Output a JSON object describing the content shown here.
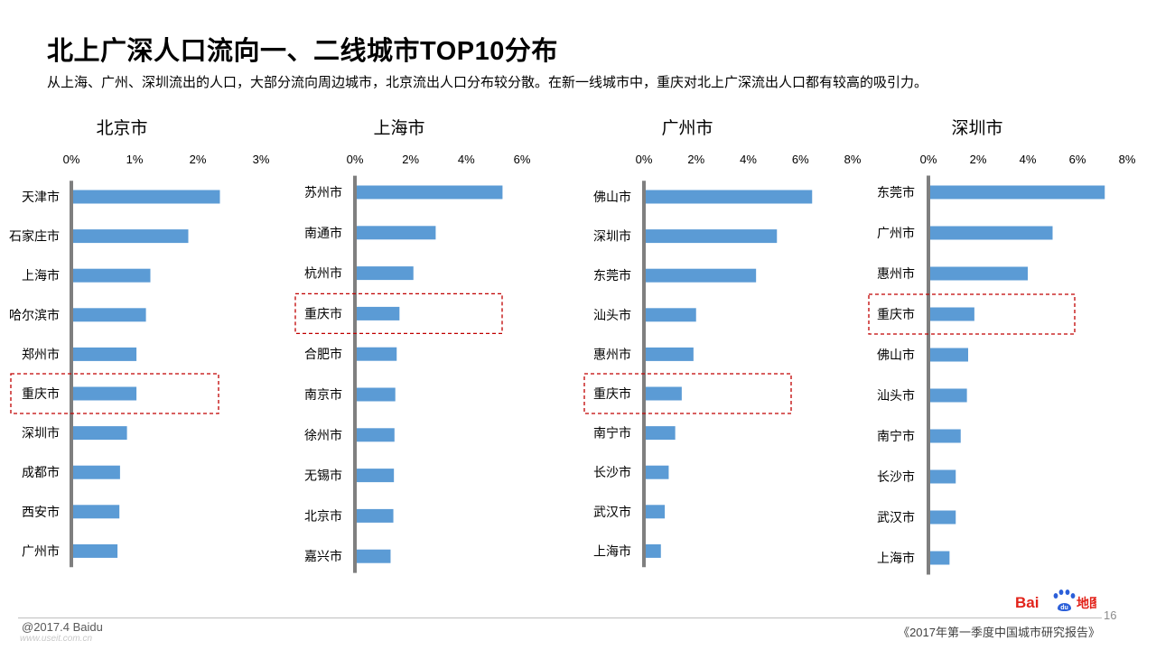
{
  "header": {
    "title": "北上广深人口流向一、二线城市TOP10分布",
    "subtitle": "从上海、广州、深圳流出的人口，大部分流向周边城市，北京流出人口分布较分散。在新一线城市中，重庆对北上广深流出人口都有较高的吸引力。"
  },
  "footer": {
    "copyright": "@2017.4 Baidu",
    "watermark": "www.useit.com.cn",
    "report_name": "《2017年第一季度中国城市研究报告》",
    "page_number": "16"
  },
  "logo": {
    "text_bai": "Bai",
    "text_map": "地图",
    "brand_red": "#e2231a",
    "brand_blue": "#2b5fd9"
  },
  "colors": {
    "bar": "#5b9bd5",
    "axis": "#7f7f7f",
    "highlight": "#c00000"
  },
  "chart_data": [
    {
      "type": "bar",
      "orientation": "horizontal",
      "title": "北京市",
      "categories": [
        "天津市",
        "石家庄市",
        "上海市",
        "哈尔滨市",
        "郑州市",
        "重庆市",
        "深圳市",
        "成都市",
        "西安市",
        "广州市"
      ],
      "values": [
        2.35,
        1.85,
        1.25,
        1.18,
        1.03,
        1.03,
        0.88,
        0.77,
        0.76,
        0.73
      ],
      "xlim": [
        0,
        3
      ],
      "ticks": [
        "0%",
        "1%",
        "2%",
        "3%"
      ],
      "unit": "%",
      "highlight": "重庆市"
    },
    {
      "type": "bar",
      "orientation": "horizontal",
      "title": "上海市",
      "categories": [
        "苏州市",
        "南通市",
        "杭州市",
        "重庆市",
        "合肥市",
        "南京市",
        "徐州市",
        "无锡市",
        "北京市",
        "嘉兴市"
      ],
      "values": [
        5.3,
        2.9,
        2.1,
        1.6,
        1.5,
        1.45,
        1.42,
        1.4,
        1.38,
        1.28
      ],
      "xlim": [
        0,
        6
      ],
      "ticks": [
        "0%",
        "2%",
        "4%",
        "6%"
      ],
      "unit": "%",
      "highlight": "重庆市"
    },
    {
      "type": "bar",
      "orientation": "horizontal",
      "title": "广州市",
      "categories": [
        "佛山市",
        "深圳市",
        "东莞市",
        "汕头市",
        "惠州市",
        "重庆市",
        "南宁市",
        "长沙市",
        "武汉市",
        "上海市"
      ],
      "values": [
        6.45,
        5.1,
        4.3,
        2.0,
        1.9,
        1.45,
        1.2,
        0.95,
        0.8,
        0.65
      ],
      "xlim": [
        0,
        8
      ],
      "ticks": [
        "0%",
        "2%",
        "4%",
        "6%",
        "8%"
      ],
      "unit": "%",
      "highlight": "重庆市"
    },
    {
      "type": "bar",
      "orientation": "horizontal",
      "title": "深圳市",
      "categories": [
        "东莞市",
        "广州市",
        "惠州市",
        "重庆市",
        "佛山市",
        "汕头市",
        "南宁市",
        "长沙市",
        "武汉市",
        "上海市"
      ],
      "values": [
        7.1,
        5.0,
        4.0,
        1.85,
        1.6,
        1.55,
        1.3,
        1.1,
        1.1,
        0.85
      ],
      "xlim": [
        0,
        8
      ],
      "ticks": [
        "0%",
        "2%",
        "4%",
        "6%",
        "8%"
      ],
      "unit": "%",
      "highlight": "重庆市"
    }
  ]
}
